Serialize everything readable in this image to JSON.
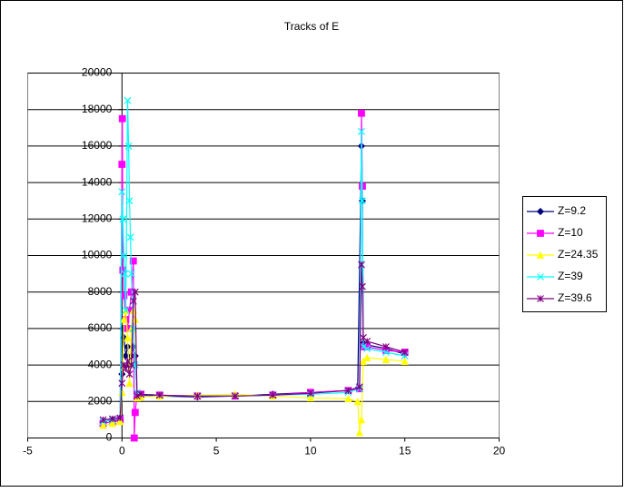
{
  "chart_data": {
    "type": "scatter-line",
    "title": "Tracks of E",
    "xlim": [
      -5,
      20
    ],
    "xticks": [
      -5,
      0,
      5,
      10,
      15,
      20
    ],
    "ylim": [
      0,
      20000
    ],
    "yticks": [
      0,
      2000,
      4000,
      6000,
      8000,
      10000,
      12000,
      14000,
      16000,
      18000,
      20000
    ],
    "grid": true,
    "legend": "right",
    "series": [
      {
        "name": "Z=9.2",
        "color": "#000080",
        "marker": "diamond",
        "x": [
          -1,
          -0.5,
          -0.1,
          0,
          0.05,
          0.1,
          0.2,
          0.3,
          0.4,
          0.5,
          0.6,
          0.7,
          0.8,
          1,
          2,
          4,
          6,
          8,
          10,
          12,
          12.5,
          12.7,
          12.75,
          12.8,
          13,
          14,
          15
        ],
        "values": [
          900,
          1000,
          1100,
          3500,
          6000,
          5500,
          4500,
          5000,
          4000,
          4500,
          5000,
          4500,
          2300,
          2350,
          2300,
          2250,
          2300,
          2400,
          2500,
          2600,
          2700,
          16000,
          13000,
          5200,
          5100,
          4900,
          4600
        ]
      },
      {
        "name": "Z=10",
        "color": "#ff00ff",
        "marker": "square",
        "x": [
          -1,
          -0.5,
          -0.1,
          0,
          0.02,
          0.05,
          0.1,
          0.2,
          0.3,
          0.4,
          0.5,
          0.6,
          0.65,
          0.7,
          0.8,
          1,
          2,
          4,
          6,
          8,
          10,
          12,
          12.6,
          12.7,
          12.75,
          12.8,
          13,
          14,
          15
        ],
        "values": [
          800,
          900,
          1000,
          15000,
          17500,
          9200,
          7800,
          6500,
          6000,
          7000,
          8000,
          9700,
          0,
          1400,
          2400,
          2400,
          2350,
          2300,
          2300,
          2350,
          2500,
          2600,
          2700,
          17800,
          13800,
          5000,
          5000,
          4800,
          4700
        ]
      },
      {
        "name": "Z=24.35",
        "color": "#ffff00",
        "marker": "triangle",
        "x": [
          -1,
          -0.5,
          -0.1,
          0,
          0.1,
          0.2,
          0.3,
          0.4,
          0.5,
          0.6,
          0.7,
          0.8,
          1,
          2,
          4,
          6,
          8,
          10,
          12,
          12.5,
          12.6,
          12.7,
          12.8,
          13,
          14,
          15
        ],
        "values": [
          700,
          800,
          900,
          2500,
          6500,
          7000,
          5500,
          3000,
          6000,
          7000,
          6500,
          2200,
          2250,
          2300,
          2350,
          2400,
          2300,
          2200,
          2150,
          2000,
          300,
          1000,
          4200,
          4400,
          4300,
          4200
        ]
      },
      {
        "name": "Z=39",
        "color": "#00ffff",
        "marker": "x",
        "x": [
          -1,
          -0.5,
          -0.1,
          0,
          0.05,
          0.1,
          0.15,
          0.2,
          0.3,
          0.35,
          0.4,
          0.45,
          0.5,
          0.6,
          0.7,
          0.8,
          1,
          2,
          4,
          6,
          8,
          10,
          12,
          12.6,
          12.7,
          12.75,
          12.8,
          13,
          14,
          15
        ],
        "values": [
          900,
          1000,
          1100,
          13500,
          12000,
          10000,
          9000,
          7000,
          18500,
          16000,
          13000,
          11000,
          9000,
          6000,
          4000,
          2500,
          2400,
          2350,
          2300,
          2300,
          2350,
          2400,
          2500,
          2700,
          16800,
          13000,
          5000,
          4900,
          4700,
          4500
        ]
      },
      {
        "name": "Z=39.6",
        "color": "#800080",
        "marker": "star",
        "x": [
          -1,
          -0.5,
          -0.1,
          0,
          0.1,
          0.2,
          0.3,
          0.4,
          0.5,
          0.6,
          0.7,
          0.8,
          1,
          2,
          4,
          6,
          8,
          10,
          12,
          12.6,
          12.7,
          12.75,
          12.8,
          13,
          14,
          15
        ],
        "values": [
          1000,
          1050,
          1100,
          3000,
          4000,
          3800,
          4200,
          3500,
          4000,
          7500,
          8000,
          2300,
          2400,
          2350,
          2300,
          2300,
          2350,
          2450,
          2600,
          2800,
          9500,
          8300,
          5500,
          5300,
          5000,
          4700
        ]
      }
    ]
  }
}
